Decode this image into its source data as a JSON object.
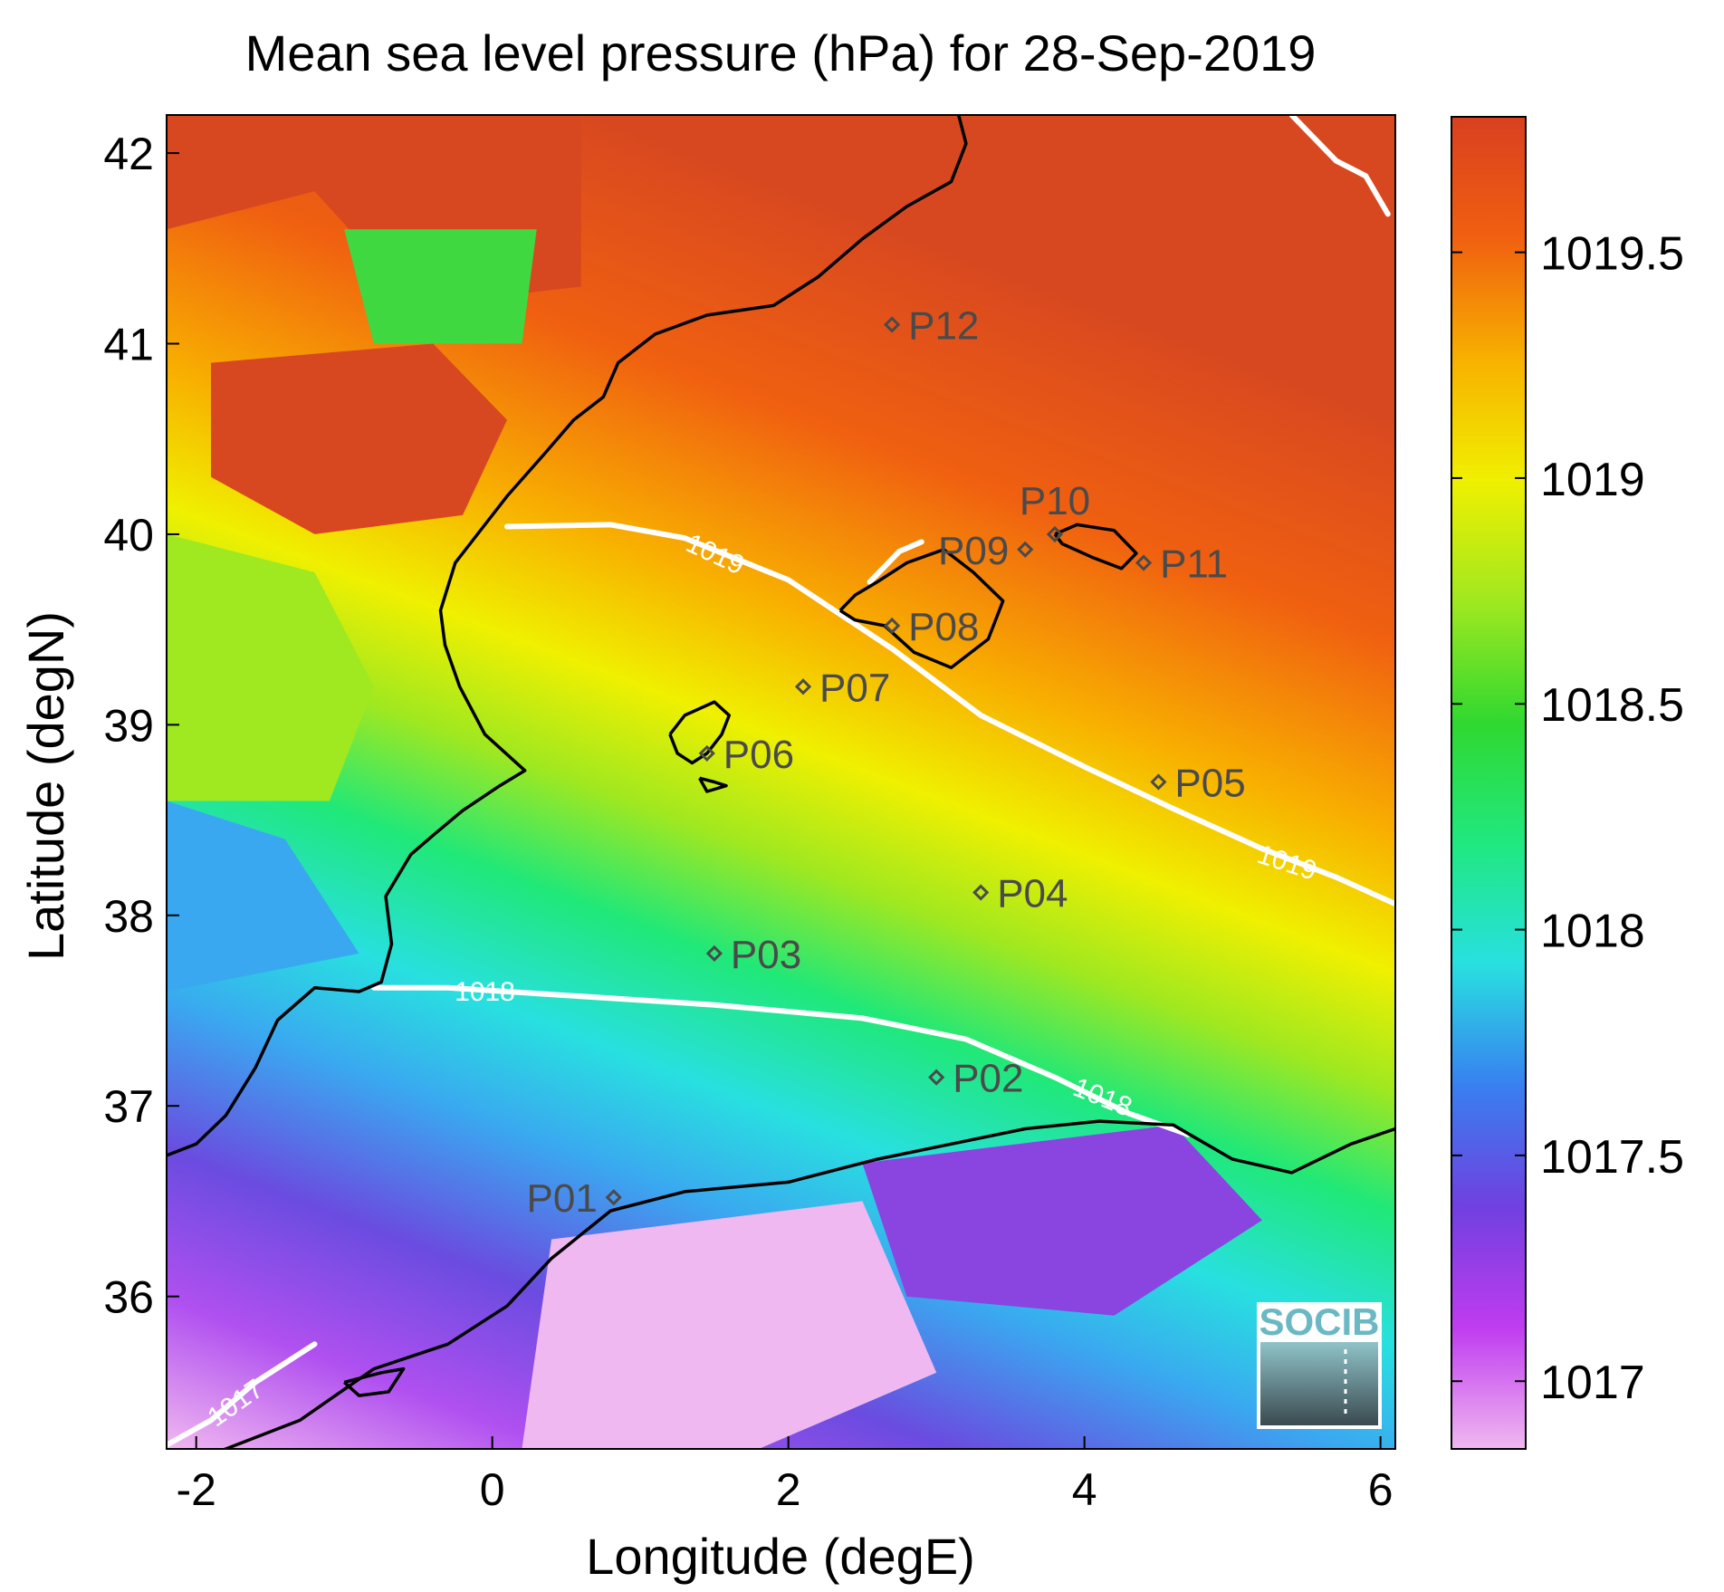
{
  "title": "Mean sea level pressure (hPa) for 28-Sep-2019",
  "axes": {
    "xlabel": "Longitude (degE)",
    "ylabel": "Latitude (degN)",
    "xlim": [
      -2.2,
      6.1
    ],
    "ylim": [
      35.2,
      42.2
    ],
    "xticks": [
      {
        "value": -2,
        "label": "-2"
      },
      {
        "value": 0,
        "label": "0"
      },
      {
        "value": 2,
        "label": "2"
      },
      {
        "value": 4,
        "label": "4"
      },
      {
        "value": 6,
        "label": "6"
      }
    ],
    "yticks": [
      {
        "value": 36,
        "label": "36"
      },
      {
        "value": 37,
        "label": "37"
      },
      {
        "value": 38,
        "label": "38"
      },
      {
        "value": 39,
        "label": "39"
      },
      {
        "value": 40,
        "label": "40"
      },
      {
        "value": 41,
        "label": "41"
      },
      {
        "value": 42,
        "label": "42"
      }
    ]
  },
  "colorbar": {
    "range": [
      1016.85,
      1019.8
    ],
    "ticks": [
      {
        "value": 1017,
        "label": "1017"
      },
      {
        "value": 1017.5,
        "label": "1017.5"
      },
      {
        "value": 1018,
        "label": "1018"
      },
      {
        "value": 1018.5,
        "label": "1018.5"
      },
      {
        "value": 1019,
        "label": "1019"
      },
      {
        "value": 1019.5,
        "label": "1019.5"
      }
    ],
    "colors": [
      "#f0b8f0",
      "#c03cf0",
      "#7040e0",
      "#3880f0",
      "#28e0e0",
      "#20e880",
      "#30d830",
      "#a0e820",
      "#f0f000",
      "#f8b000",
      "#f06010",
      "#d84020"
    ]
  },
  "stations": [
    {
      "name": "P01",
      "lon": 0.82,
      "lat": 36.52,
      "label_side": "left"
    },
    {
      "name": "P02",
      "lon": 3.0,
      "lat": 37.15,
      "label_side": "right"
    },
    {
      "name": "P03",
      "lon": 1.5,
      "lat": 37.8,
      "label_side": "right"
    },
    {
      "name": "P04",
      "lon": 3.3,
      "lat": 38.12,
      "label_side": "right"
    },
    {
      "name": "P05",
      "lon": 4.5,
      "lat": 38.7,
      "label_side": "right"
    },
    {
      "name": "P06",
      "lon": 1.45,
      "lat": 38.85,
      "label_side": "right"
    },
    {
      "name": "P07",
      "lon": 2.1,
      "lat": 39.2,
      "label_side": "right"
    },
    {
      "name": "P08",
      "lon": 2.7,
      "lat": 39.52,
      "label_side": "right"
    },
    {
      "name": "P09",
      "lon": 3.6,
      "lat": 39.92,
      "label_side": "left"
    },
    {
      "name": "P10",
      "lon": 3.8,
      "lat": 40.0,
      "label_side": "above"
    },
    {
      "name": "P11",
      "lon": 4.4,
      "lat": 39.85,
      "label_side": "right"
    },
    {
      "name": "P12",
      "lon": 2.7,
      "lat": 41.1,
      "label_side": "right"
    }
  ],
  "contours": [
    {
      "level": 1017,
      "label": "1017",
      "points": [
        [
          -2.2,
          35.22
        ],
        [
          -1.9,
          35.35
        ],
        [
          -1.6,
          35.55
        ],
        [
          -1.2,
          35.75
        ]
      ],
      "labels_at": [
        [
          -1.7,
          35.45,
          -35
        ]
      ]
    },
    {
      "level": 1018,
      "label": "1018",
      "points": [
        [
          -0.8,
          37.62
        ],
        [
          -0.3,
          37.62
        ],
        [
          0.5,
          37.58
        ],
        [
          1.5,
          37.53
        ],
        [
          2.5,
          37.46
        ],
        [
          3.2,
          37.35
        ],
        [
          3.8,
          37.15
        ],
        [
          4.3,
          36.96
        ],
        [
          4.7,
          36.85
        ]
      ],
      "labels_at": [
        [
          -0.05,
          37.6,
          0
        ],
        [
          4.1,
          37.05,
          22
        ]
      ]
    },
    {
      "level": 1019,
      "label": "1019",
      "points": [
        [
          0.1,
          40.04
        ],
        [
          0.8,
          40.05
        ],
        [
          1.3,
          39.98
        ],
        [
          2.0,
          39.76
        ],
        [
          2.7,
          39.4
        ],
        [
          3.3,
          39.05
        ],
        [
          4.0,
          38.78
        ],
        [
          4.6,
          38.56
        ],
        [
          5.2,
          38.35
        ],
        [
          5.7,
          38.2
        ],
        [
          6.1,
          38.06
        ]
      ],
      "labels_at": [
        [
          1.48,
          39.9,
          25
        ],
        [
          5.35,
          38.28,
          18
        ]
      ]
    },
    {
      "level": 1019,
      "label": "",
      "points": [
        [
          5.4,
          42.2
        ],
        [
          5.7,
          41.96
        ],
        [
          5.9,
          41.88
        ],
        [
          6.05,
          41.68
        ]
      ],
      "labels_at": []
    },
    {
      "level": 1019,
      "label": "",
      "points": [
        [
          2.55,
          39.75
        ],
        [
          2.75,
          39.91
        ],
        [
          2.9,
          39.96
        ]
      ],
      "labels_at": []
    }
  ],
  "coastlines": {
    "iberia": [
      [
        -2.2,
        36.74
      ],
      [
        -2.0,
        36.8
      ],
      [
        -1.8,
        36.95
      ],
      [
        -1.6,
        37.2
      ],
      [
        -1.45,
        37.45
      ],
      [
        -1.2,
        37.62
      ],
      [
        -0.9,
        37.6
      ],
      [
        -0.75,
        37.65
      ],
      [
        -0.68,
        37.85
      ],
      [
        -0.72,
        38.1
      ],
      [
        -0.55,
        38.32
      ],
      [
        -0.4,
        38.42
      ],
      [
        -0.2,
        38.55
      ],
      [
        0.05,
        38.68
      ],
      [
        0.22,
        38.76
      ],
      [
        -0.05,
        38.95
      ],
      [
        -0.22,
        39.2
      ],
      [
        -0.32,
        39.42
      ],
      [
        -0.35,
        39.6
      ],
      [
        -0.25,
        39.85
      ],
      [
        -0.05,
        40.05
      ],
      [
        0.1,
        40.2
      ],
      [
        0.35,
        40.42
      ],
      [
        0.55,
        40.6
      ],
      [
        0.75,
        40.72
      ],
      [
        0.85,
        40.9
      ],
      [
        1.1,
        41.05
      ],
      [
        1.45,
        41.15
      ],
      [
        1.9,
        41.2
      ],
      [
        2.2,
        41.35
      ],
      [
        2.5,
        41.55
      ],
      [
        2.8,
        41.72
      ],
      [
        3.1,
        41.85
      ],
      [
        3.2,
        42.05
      ],
      [
        3.15,
        42.2
      ]
    ],
    "africa": [
      [
        -2.2,
        35.1
      ],
      [
        -1.8,
        35.2
      ],
      [
        -1.3,
        35.35
      ],
      [
        -0.8,
        35.62
      ],
      [
        -0.3,
        35.75
      ],
      [
        0.1,
        35.95
      ],
      [
        0.4,
        36.2
      ],
      [
        0.8,
        36.45
      ],
      [
        1.3,
        36.55
      ],
      [
        2.0,
        36.6
      ],
      [
        2.6,
        36.72
      ],
      [
        3.1,
        36.8
      ],
      [
        3.6,
        36.88
      ],
      [
        4.1,
        36.92
      ],
      [
        4.6,
        36.9
      ],
      [
        5.0,
        36.72
      ],
      [
        5.4,
        36.65
      ],
      [
        5.8,
        36.8
      ],
      [
        6.1,
        36.88
      ]
    ],
    "mallorca": [
      [
        2.35,
        39.6
      ],
      [
        2.45,
        39.68
      ],
      [
        2.6,
        39.75
      ],
      [
        2.8,
        39.85
      ],
      [
        3.05,
        39.92
      ],
      [
        3.25,
        39.8
      ],
      [
        3.45,
        39.65
      ],
      [
        3.35,
        39.45
      ],
      [
        3.1,
        39.3
      ],
      [
        2.85,
        39.38
      ],
      [
        2.65,
        39.52
      ],
      [
        2.45,
        39.55
      ],
      [
        2.35,
        39.6
      ]
    ],
    "menorca": [
      [
        3.8,
        40.0
      ],
      [
        3.95,
        40.05
      ],
      [
        4.2,
        40.02
      ],
      [
        4.35,
        39.9
      ],
      [
        4.25,
        39.82
      ],
      [
        4.05,
        39.88
      ],
      [
        3.85,
        39.95
      ],
      [
        3.8,
        40.0
      ]
    ],
    "ibiza": [
      [
        1.2,
        38.95
      ],
      [
        1.3,
        39.05
      ],
      [
        1.5,
        39.12
      ],
      [
        1.6,
        39.05
      ],
      [
        1.55,
        38.95
      ],
      [
        1.45,
        38.85
      ],
      [
        1.35,
        38.8
      ],
      [
        1.25,
        38.85
      ],
      [
        1.2,
        38.95
      ]
    ],
    "formentera": [
      [
        1.4,
        38.72
      ],
      [
        1.5,
        38.7
      ],
      [
        1.58,
        38.68
      ],
      [
        1.45,
        38.65
      ],
      [
        1.4,
        38.72
      ]
    ],
    "alboran": [
      [
        -1.0,
        35.55
      ],
      [
        -0.75,
        35.6
      ],
      [
        -0.6,
        35.62
      ],
      [
        -0.7,
        35.5
      ],
      [
        -0.9,
        35.48
      ],
      [
        -1.0,
        35.55
      ]
    ]
  },
  "logo": {
    "text": "SOCIB"
  }
}
